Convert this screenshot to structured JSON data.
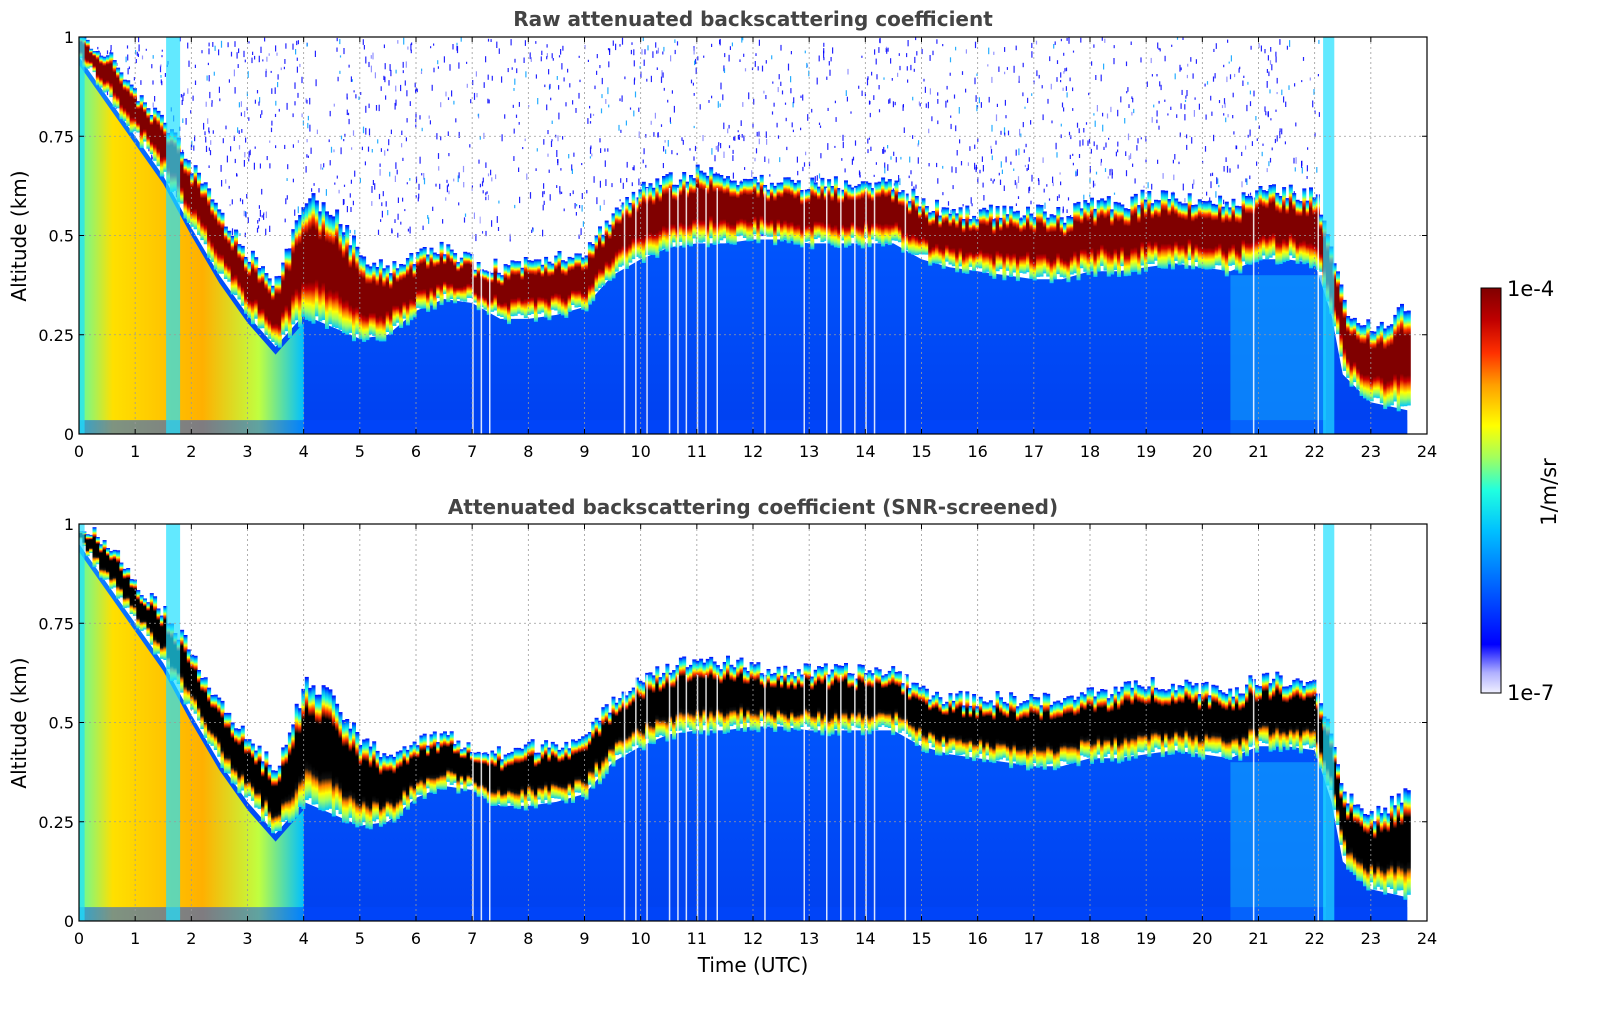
{
  "chart_data": [
    {
      "type": "heatmap",
      "title": "Raw attenuated backscattering coefficient",
      "xlabel": "",
      "ylabel": "Altitude (km)",
      "xlim": [
        0,
        24
      ],
      "ylim": [
        0,
        1
      ],
      "xticks": [
        "0",
        "1",
        "2",
        "3",
        "4",
        "5",
        "6",
        "7",
        "8",
        "9",
        "10",
        "11",
        "12",
        "13",
        "14",
        "15",
        "16",
        "17",
        "18",
        "19",
        "20",
        "21",
        "22",
        "23",
        "24"
      ],
      "yticks": [
        "0",
        "0.25",
        "0.5",
        "0.75",
        "1"
      ],
      "grid": true,
      "data_end_hour": 23.65,
      "cloud_base_km": {
        "x": [
          0,
          0.5,
          1,
          1.5,
          2,
          2.5,
          3,
          3.5,
          4,
          4.5,
          5,
          5.5,
          6,
          6.5,
          7,
          7.5,
          8,
          8.5,
          9,
          9.5,
          10,
          10.5,
          11,
          11.5,
          12,
          12.5,
          13,
          13.5,
          14,
          14.5,
          15,
          15.5,
          16,
          16.5,
          17,
          17.5,
          18,
          18.5,
          19,
          19.5,
          20,
          20.5,
          21,
          21.5,
          22,
          22.3,
          22.5,
          23,
          23.65
        ],
        "y": [
          0.95,
          0.85,
          0.75,
          0.65,
          0.52,
          0.4,
          0.3,
          0.22,
          0.3,
          0.27,
          0.24,
          0.25,
          0.31,
          0.34,
          0.33,
          0.29,
          0.29,
          0.3,
          0.32,
          0.4,
          0.44,
          0.47,
          0.48,
          0.48,
          0.49,
          0.49,
          0.48,
          0.48,
          0.48,
          0.48,
          0.44,
          0.42,
          0.41,
          0.4,
          0.39,
          0.39,
          0.41,
          0.41,
          0.42,
          0.43,
          0.42,
          0.41,
          0.44,
          0.44,
          0.43,
          0.3,
          0.15,
          0.08,
          0.06
        ]
      },
      "cloud_top_km": {
        "x": [
          0,
          0.5,
          1,
          1.5,
          2,
          2.5,
          3,
          3.5,
          4,
          4.5,
          5,
          5.5,
          6,
          6.5,
          7,
          7.5,
          8,
          8.5,
          9,
          9.5,
          10,
          10.5,
          11,
          11.5,
          12,
          12.5,
          13,
          13.5,
          14,
          14.5,
          15,
          15.5,
          16,
          16.5,
          17,
          17.5,
          18,
          18.5,
          19,
          19.5,
          20,
          20.5,
          21,
          21.5,
          22,
          22.3,
          22.5,
          23,
          23.65
        ],
        "y": [
          1.0,
          0.95,
          0.85,
          0.78,
          0.67,
          0.55,
          0.45,
          0.38,
          0.6,
          0.56,
          0.45,
          0.42,
          0.45,
          0.47,
          0.43,
          0.42,
          0.44,
          0.45,
          0.46,
          0.56,
          0.62,
          0.64,
          0.66,
          0.65,
          0.64,
          0.63,
          0.63,
          0.63,
          0.63,
          0.63,
          0.58,
          0.56,
          0.56,
          0.56,
          0.56,
          0.55,
          0.58,
          0.58,
          0.6,
          0.6,
          0.59,
          0.58,
          0.61,
          0.61,
          0.6,
          0.45,
          0.32,
          0.26,
          0.33
        ]
      }
    },
    {
      "type": "heatmap",
      "title": "Attenuated backscattering coefficient (SNR-screened)",
      "xlabel": "Time (UTC)",
      "ylabel": "Altitude (km)",
      "xlim": [
        0,
        24
      ],
      "ylim": [
        0,
        1
      ],
      "xticks": [
        "0",
        "1",
        "2",
        "3",
        "4",
        "5",
        "6",
        "7",
        "8",
        "9",
        "10",
        "11",
        "12",
        "13",
        "14",
        "15",
        "16",
        "17",
        "18",
        "19",
        "20",
        "21",
        "22",
        "23",
        "24"
      ],
      "yticks": [
        "0",
        "0.25",
        "0.5",
        "0.75",
        "1"
      ],
      "grid": true,
      "data_end_hour": 23.65,
      "saturated_color": "#000000",
      "cloud_base_km": {
        "x": [
          0,
          0.5,
          1,
          1.5,
          2,
          2.5,
          3,
          3.5,
          4,
          4.5,
          5,
          5.5,
          6,
          6.5,
          7,
          7.5,
          8,
          8.5,
          9,
          9.5,
          10,
          10.5,
          11,
          11.5,
          12,
          12.5,
          13,
          13.5,
          14,
          14.5,
          15,
          15.5,
          16,
          16.5,
          17,
          17.5,
          18,
          18.5,
          19,
          19.5,
          20,
          20.5,
          21,
          21.5,
          22,
          22.3,
          22.5,
          23,
          23.65
        ],
        "y": [
          0.95,
          0.85,
          0.75,
          0.65,
          0.52,
          0.4,
          0.3,
          0.22,
          0.3,
          0.27,
          0.24,
          0.25,
          0.31,
          0.34,
          0.33,
          0.29,
          0.29,
          0.3,
          0.32,
          0.4,
          0.44,
          0.47,
          0.48,
          0.48,
          0.49,
          0.49,
          0.48,
          0.48,
          0.48,
          0.48,
          0.44,
          0.42,
          0.41,
          0.4,
          0.39,
          0.39,
          0.41,
          0.41,
          0.42,
          0.43,
          0.42,
          0.41,
          0.44,
          0.44,
          0.43,
          0.3,
          0.15,
          0.08,
          0.06
        ]
      },
      "cloud_top_km": {
        "x": [
          0,
          0.5,
          1,
          1.5,
          2,
          2.5,
          3,
          3.5,
          4,
          4.5,
          5,
          5.5,
          6,
          6.5,
          7,
          7.5,
          8,
          8.5,
          9,
          9.5,
          10,
          10.5,
          11,
          11.5,
          12,
          12.5,
          13,
          13.5,
          14,
          14.5,
          15,
          15.5,
          16,
          16.5,
          17,
          17.5,
          18,
          18.5,
          19,
          19.5,
          20,
          20.5,
          21,
          21.5,
          22,
          22.3,
          22.5,
          23,
          23.65
        ],
        "y": [
          1.0,
          0.95,
          0.85,
          0.78,
          0.67,
          0.55,
          0.45,
          0.38,
          0.6,
          0.56,
          0.45,
          0.42,
          0.45,
          0.47,
          0.43,
          0.42,
          0.44,
          0.45,
          0.46,
          0.56,
          0.62,
          0.64,
          0.66,
          0.65,
          0.64,
          0.63,
          0.63,
          0.63,
          0.63,
          0.63,
          0.58,
          0.56,
          0.56,
          0.56,
          0.56,
          0.55,
          0.58,
          0.58,
          0.6,
          0.6,
          0.59,
          0.58,
          0.61,
          0.61,
          0.6,
          0.45,
          0.32,
          0.26,
          0.33
        ]
      }
    }
  ],
  "colorbar": {
    "label": "1/m/sr",
    "max_label": "1e-4",
    "min_label": "1e-7",
    "scale": "log",
    "range": [
      1e-07,
      0.0001
    ],
    "colormap": [
      "#f0f0ff",
      "#b0b0ff",
      "#0000ff",
      "#0060ff",
      "#00c0ff",
      "#20ffe0",
      "#a0ff60",
      "#ffff00",
      "#ffa000",
      "#ff3000",
      "#c00000",
      "#800000"
    ]
  }
}
